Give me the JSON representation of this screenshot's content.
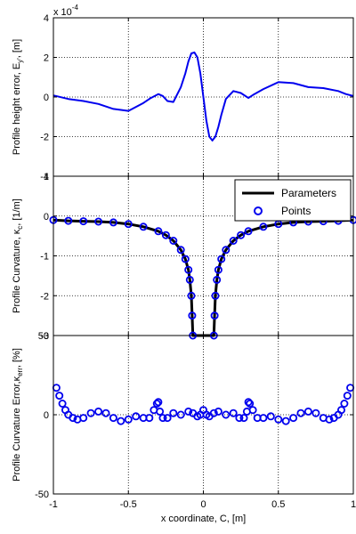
{
  "figure": {
    "background": "#ffffff",
    "line_color": "#0000ee"
  },
  "chart_data": [
    {
      "type": "line",
      "ylabel": "Profile height error, E",
      "ylabel_sub": "y'",
      "ylabel_tail": ", [m]",
      "exponent_label": "x 10",
      "exponent_power": "-4",
      "xlim": [
        -1,
        1
      ],
      "ylim": [
        -4,
        4
      ],
      "xticks": [
        -1,
        -0.5,
        0,
        0.5,
        1
      ],
      "xtick_labels": [
        "",
        "",
        "",
        "",
        ""
      ],
      "yticks": [
        -4,
        -2,
        0,
        2,
        4
      ],
      "ytick_labels": [
        "-4",
        "-2",
        "0",
        "2",
        "4"
      ],
      "grid": true,
      "series": [
        {
          "color": "#0000ee",
          "x": [
            -1,
            -0.9,
            -0.8,
            -0.7,
            -0.6,
            -0.5,
            -0.4,
            -0.35,
            -0.3,
            -0.27,
            -0.24,
            -0.2,
            -0.15,
            -0.12,
            -0.1,
            -0.08,
            -0.06,
            -0.04,
            -0.02,
            0,
            0.02,
            0.04,
            0.06,
            0.08,
            0.1,
            0.12,
            0.15,
            0.2,
            0.25,
            0.3,
            0.33,
            0.4,
            0.5,
            0.6,
            0.7,
            0.8,
            0.9,
            0.95,
            1
          ],
          "y": [
            0.08,
            -0.1,
            -0.2,
            -0.35,
            -0.6,
            -0.7,
            -0.3,
            -0.05,
            0.15,
            0.05,
            -0.2,
            -0.25,
            0.5,
            1.2,
            1.8,
            2.2,
            2.25,
            2.0,
            1.2,
            0.0,
            -1.2,
            -2.0,
            -2.2,
            -2.0,
            -1.5,
            -0.9,
            -0.1,
            0.3,
            0.2,
            -0.05,
            0.1,
            0.4,
            0.75,
            0.7,
            0.5,
            0.45,
            0.3,
            0.15,
            0.05
          ]
        }
      ]
    },
    {
      "type": "scatter",
      "ylabel": "Profile Curvature, κ",
      "ylabel_sub": "c",
      "ylabel_tail": ", [1/m]",
      "xlim": [
        -1,
        1
      ],
      "ylim": [
        -3,
        1
      ],
      "xticks": [
        -1,
        -0.5,
        0,
        0.5,
        1
      ],
      "xtick_labels": [
        "",
        "",
        "",
        "",
        ""
      ],
      "yticks": [
        -3,
        -2,
        -1,
        0,
        1
      ],
      "ytick_labels": [
        "-3",
        "-2",
        "-1",
        "0",
        "1"
      ],
      "grid": true,
      "legend_position": "top-right",
      "legend": [
        "Parameters",
        "Points"
      ],
      "series": [
        {
          "name": "Parameters",
          "style": "line",
          "color": "#000000",
          "x": [
            -1,
            -0.9,
            -0.8,
            -0.7,
            -0.6,
            -0.5,
            -0.4,
            -0.3,
            -0.25,
            -0.2,
            -0.15,
            -0.12,
            -0.1,
            -0.09,
            -0.08,
            -0.075,
            -0.07,
            0.07,
            0.075,
            0.08,
            0.09,
            0.1,
            0.12,
            0.15,
            0.2,
            0.25,
            0.3,
            0.4,
            0.5,
            0.6,
            0.7,
            0.8,
            0.9,
            1
          ],
          "y": [
            -0.1,
            -0.12,
            -0.13,
            -0.14,
            -0.16,
            -0.2,
            -0.27,
            -0.38,
            -0.48,
            -0.62,
            -0.85,
            -1.08,
            -1.35,
            -1.6,
            -2.0,
            -2.5,
            -3.0,
            -3.0,
            -2.5,
            -2.0,
            -1.6,
            -1.35,
            -1.08,
            -0.85,
            -0.62,
            -0.48,
            -0.38,
            -0.27,
            -0.2,
            -0.16,
            -0.14,
            -0.13,
            -0.12,
            -0.1
          ]
        },
        {
          "name": "Points",
          "style": "markers",
          "marker": "circle",
          "color": "#0000ee",
          "x": [
            -1,
            -0.9,
            -0.8,
            -0.7,
            -0.6,
            -0.5,
            -0.4,
            -0.3,
            -0.25,
            -0.2,
            -0.15,
            -0.12,
            -0.1,
            -0.09,
            -0.08,
            -0.075,
            -0.07,
            0.07,
            0.075,
            0.08,
            0.09,
            0.1,
            0.12,
            0.15,
            0.2,
            0.25,
            0.3,
            0.4,
            0.5,
            0.6,
            0.7,
            0.8,
            0.9,
            1
          ],
          "y": [
            -0.1,
            -0.12,
            -0.13,
            -0.14,
            -0.16,
            -0.2,
            -0.27,
            -0.38,
            -0.48,
            -0.62,
            -0.85,
            -1.08,
            -1.35,
            -1.6,
            -2.0,
            -2.5,
            -3.0,
            -3.0,
            -2.5,
            -2.0,
            -1.6,
            -1.35,
            -1.08,
            -0.85,
            -0.62,
            -0.48,
            -0.38,
            -0.27,
            -0.2,
            -0.16,
            -0.14,
            -0.13,
            -0.12,
            -0.1
          ]
        }
      ]
    },
    {
      "type": "scatter",
      "ylabel": "Profile Curvature Error,κ",
      "ylabel_sub": "err",
      "ylabel_tail": ", [%]",
      "xlabel": "x coordinate, C, [m]",
      "xlim": [
        -1,
        1
      ],
      "ylim": [
        -50,
        50
      ],
      "xticks": [
        -1,
        -0.5,
        0,
        0.5,
        1
      ],
      "xtick_labels": [
        "-1",
        "-0.5",
        "0",
        "0.5",
        "1"
      ],
      "yticks": [
        -50,
        0,
        50
      ],
      "ytick_labels": [
        "-50",
        "0",
        "50"
      ],
      "grid": true,
      "series": [
        {
          "name": "Points",
          "style": "markers",
          "marker": "circle",
          "color": "#0000ee",
          "x": [
            -0.98,
            -0.96,
            -0.94,
            -0.92,
            -0.9,
            -0.87,
            -0.84,
            -0.8,
            -0.75,
            -0.7,
            -0.65,
            -0.6,
            -0.55,
            -0.5,
            -0.45,
            -0.4,
            -0.36,
            -0.33,
            -0.31,
            -0.3,
            -0.29,
            -0.27,
            -0.24,
            -0.2,
            -0.15,
            -0.1,
            -0.07,
            -0.04,
            -0.02,
            0,
            0.02,
            0.04,
            0.07,
            0.1,
            0.15,
            0.2,
            0.24,
            0.27,
            0.29,
            0.3,
            0.31,
            0.33,
            0.36,
            0.4,
            0.45,
            0.5,
            0.55,
            0.6,
            0.65,
            0.7,
            0.75,
            0.8,
            0.84,
            0.87,
            0.9,
            0.92,
            0.94,
            0.96,
            0.98
          ],
          "y": [
            17,
            12,
            7,
            3,
            0,
            -2,
            -3,
            -2,
            1,
            2,
            1,
            -2,
            -4,
            -3,
            -1,
            -2,
            -2,
            3,
            7,
            8,
            2,
            -2,
            -2,
            1,
            0,
            2,
            1,
            -1,
            0,
            3,
            0,
            -1,
            1,
            2,
            0,
            1,
            -2,
            -2,
            2,
            8,
            7,
            3,
            -2,
            -2,
            -1,
            -3,
            -4,
            -2,
            1,
            2,
            1,
            -2,
            -3,
            -2,
            0,
            3,
            7,
            12,
            17
          ]
        }
      ]
    }
  ]
}
